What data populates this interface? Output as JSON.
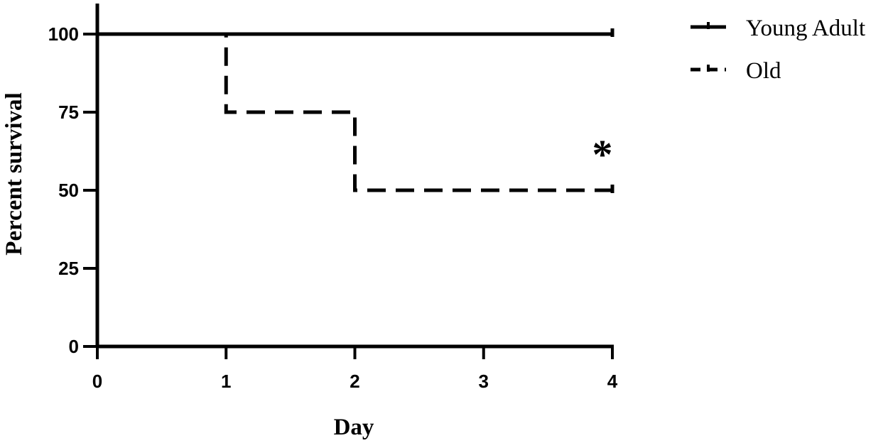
{
  "chart_data": {
    "type": "line",
    "step": true,
    "xlabel": "Day",
    "ylabel": "Percent survival",
    "xlim": [
      0,
      4
    ],
    "ylim": [
      0,
      100
    ],
    "xticks": [
      "0",
      "1",
      "2",
      "3",
      "4"
    ],
    "yticks": [
      "0",
      "25",
      "50",
      "75",
      "100"
    ],
    "grid": false,
    "legend_position": "top-right",
    "series": [
      {
        "name": "Young Adult",
        "style": "solid",
        "color": "#000000",
        "x": [
          0,
          4
        ],
        "y": [
          100,
          100
        ]
      },
      {
        "name": "Old",
        "style": "dashed",
        "color": "#000000",
        "x": [
          0,
          1,
          1,
          2,
          2,
          4
        ],
        "y": [
          100,
          100,
          75,
          75,
          50,
          50
        ]
      }
    ],
    "annotations": [
      {
        "text": "*",
        "x": 4,
        "y": 58
      }
    ]
  }
}
